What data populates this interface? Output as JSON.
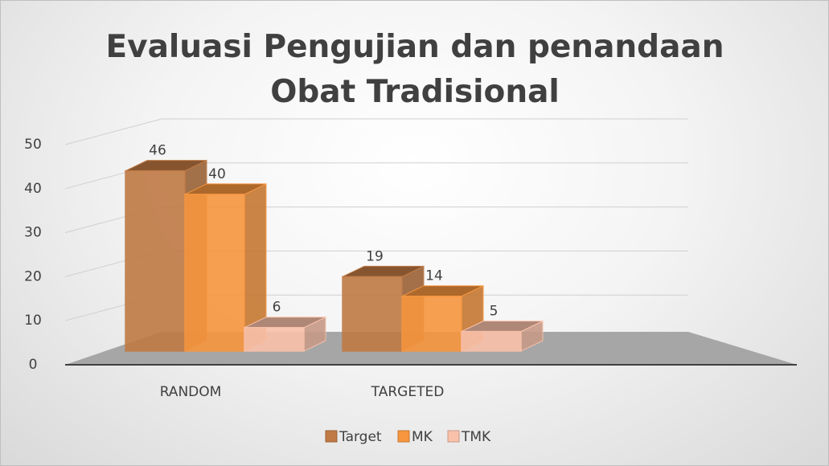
{
  "chart_data": {
    "type": "bar3d",
    "title": "Evaluasi Pengujian dan penandaan Obat Tradisional",
    "categories": [
      "RANDOM",
      "TARGETED"
    ],
    "series": [
      {
        "name": "Target",
        "color": "#c07a45",
        "values": [
          46,
          19
        ]
      },
      {
        "name": "MK",
        "color": "#f7963f",
        "values": [
          40,
          14
        ]
      },
      {
        "name": "TMK",
        "color": "#f9c1aa",
        "values": [
          6,
          5
        ]
      }
    ],
    "ylim": [
      0,
      50
    ],
    "yticks": [
      0,
      10,
      20,
      30,
      40,
      50
    ],
    "grid": true,
    "legend": "bottom"
  }
}
